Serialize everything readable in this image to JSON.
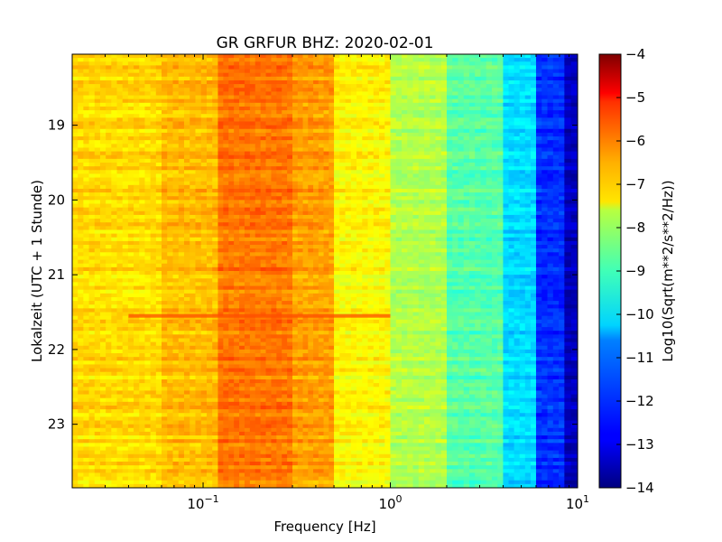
{
  "chart_data": {
    "type": "heatmap",
    "title": "GR GRFUR BHZ: 2020-02-01",
    "xlabel": "Frequency [Hz]",
    "ylabel": "Lokalzeit (UTC + 1 Stunde)",
    "colorbar_label": "Log10(Sqrt(m**2/s**2/Hz))",
    "x_scale": "log",
    "xlim": [
      0.02,
      10
    ],
    "x_ticks": [
      0.1,
      1,
      10
    ],
    "x_tick_labels": [
      {
        "base": "10",
        "exp": "−1"
      },
      {
        "base": "10",
        "exp": "0"
      },
      {
        "base": "10",
        "exp": "1"
      }
    ],
    "ylim": [
      18.05,
      23.85
    ],
    "y_inverted": true,
    "y_ticks": [
      19,
      20,
      21,
      22,
      23
    ],
    "y_tick_labels": [
      "19",
      "20",
      "21",
      "22",
      "23"
    ],
    "colorbar_range": [
      -14,
      -4
    ],
    "colorbar_ticks": [
      -4,
      -5,
      -6,
      -7,
      -8,
      -9,
      -10,
      -11,
      -12,
      -13,
      -14
    ],
    "colorbar_tick_labels": [
      "−4",
      "−5",
      "−6",
      "−7",
      "−8",
      "−9",
      "−10",
      "−11",
      "−12",
      "−13",
      "−14"
    ],
    "colormap": "jet",
    "frequency_bands": [
      {
        "f_min": 0.02,
        "f_max": 0.06,
        "value": -7.4
      },
      {
        "f_min": 0.06,
        "f_max": 0.12,
        "value": -7.1
      },
      {
        "f_min": 0.12,
        "f_max": 0.3,
        "value": -6.4
      },
      {
        "f_min": 0.3,
        "f_max": 0.5,
        "value": -6.8
      },
      {
        "f_min": 0.5,
        "f_max": 1.0,
        "value": -7.7
      },
      {
        "f_min": 1.0,
        "f_max": 2.0,
        "value": -8.5
      },
      {
        "f_min": 2.0,
        "f_max": 4.0,
        "value": -9.4
      },
      {
        "f_min": 4.0,
        "f_max": 6.0,
        "value": -10.6
      },
      {
        "f_min": 6.0,
        "f_max": 8.5,
        "value": -12.3
      },
      {
        "f_min": 8.5,
        "f_max": 10.0,
        "value": -13.4
      }
    ],
    "events": [
      {
        "time": 21.55,
        "f_min": 0.04,
        "f_max": 1.0,
        "value": -6.0
      }
    ]
  }
}
